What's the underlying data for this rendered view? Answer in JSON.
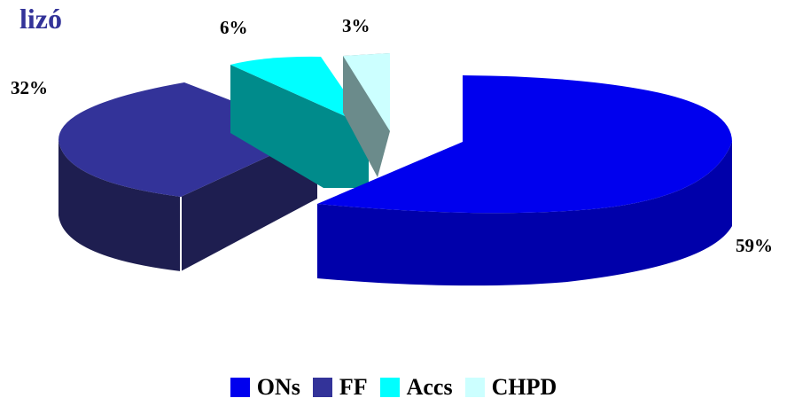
{
  "title": "lizó",
  "chart_data": {
    "type": "pie",
    "style": "3d-exploded",
    "categories": [
      "ONs",
      "FF",
      "Accs",
      "CHPD"
    ],
    "values": [
      59,
      32,
      6,
      3
    ],
    "labels": [
      "59%",
      "32%",
      "6%",
      "3%"
    ],
    "colors": {
      "ONs": "#0000ee",
      "FF": "#333399",
      "Accs": "#00ffff",
      "CHPD": "#ccffff"
    },
    "legend_position": "bottom"
  }
}
